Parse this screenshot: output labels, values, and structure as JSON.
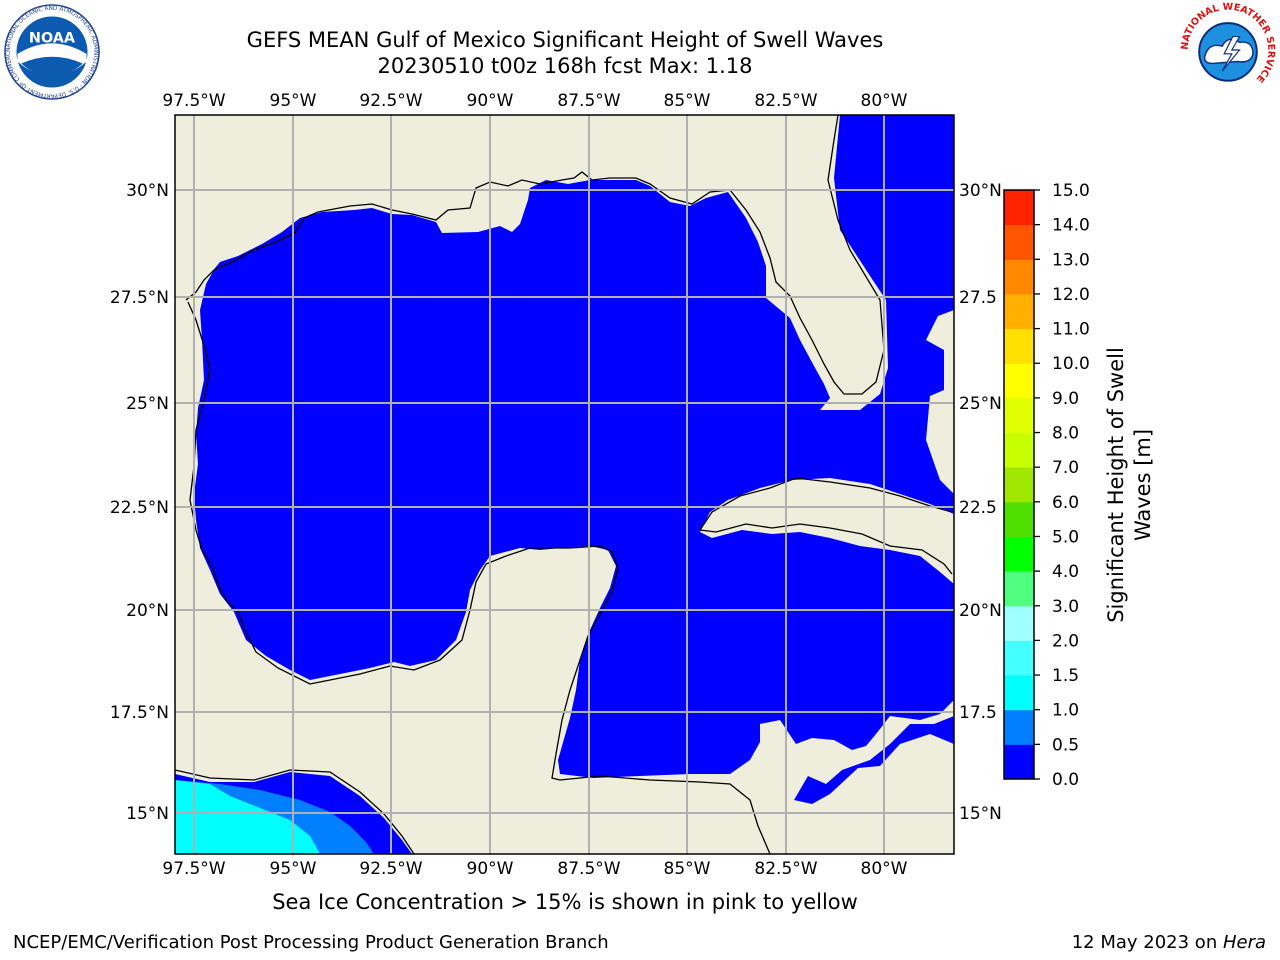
{
  "title": {
    "line1": "GEFS MEAN Gulf of Mexico Significant Height of Swell Waves",
    "line2": "20230510 t00z 168h fcst   Max: 1.18"
  },
  "map": {
    "lon_labels": [
      "97.5°W",
      "95°W",
      "92.5°W",
      "90°W",
      "87.5°W",
      "85°W",
      "82.5°W",
      "80°W"
    ],
    "lat_labels_left": [
      "30°N",
      "27.5°N",
      "25°N",
      "22.5°N",
      "20°N",
      "17.5°N",
      "15°N"
    ],
    "lat_labels_right": [
      "30°N",
      "27.5",
      "25°N",
      "22.5",
      "20°N",
      "17.5",
      "15°N"
    ],
    "colors": {
      "land": "#efeedc",
      "ocean": "#0000ff",
      "grid": "#b0b0b0",
      "swell_cyan": "#00ffff",
      "swell_mid": "#0080ff"
    }
  },
  "colorbar": {
    "label_line1": "Significant Height of Swell",
    "label_line2": "Waves [m]",
    "ticks": [
      "0.0",
      "0.5",
      "1.0",
      "1.5",
      "2.0",
      "3.0",
      "4.0",
      "5.0",
      "6.0",
      "7.0",
      "8.0",
      "9.0",
      "10.0",
      "11.0",
      "12.0",
      "13.0",
      "14.0",
      "15.0"
    ],
    "colors": [
      "#0000ff",
      "#0080ff",
      "#00ffff",
      "#44ffff",
      "#a0ffff",
      "#50ff80",
      "#00ff00",
      "#50e000",
      "#a0e800",
      "#c8ff00",
      "#e0ff00",
      "#ffff00",
      "#ffe000",
      "#ffb000",
      "#ff8800",
      "#ff5500",
      "#ff2200",
      "#ff0000"
    ]
  },
  "note": "Sea Ice Concentration > 15% is shown in pink to yellow",
  "footer": {
    "left": "NCEP/EMC/Verification Post Processing Product Generation Branch",
    "right_prefix": "12 May 2023 on ",
    "right_host": "Hera"
  },
  "logos": {
    "noaa_text": "NOAA",
    "noaa_ring": "NATIONAL OCEANIC AND ATMOSPHERIC ADMINISTRATION · U.S. DEPARTMENT OF COMMERCE",
    "nws_ring": "NATIONAL WEATHER SERVICE"
  }
}
